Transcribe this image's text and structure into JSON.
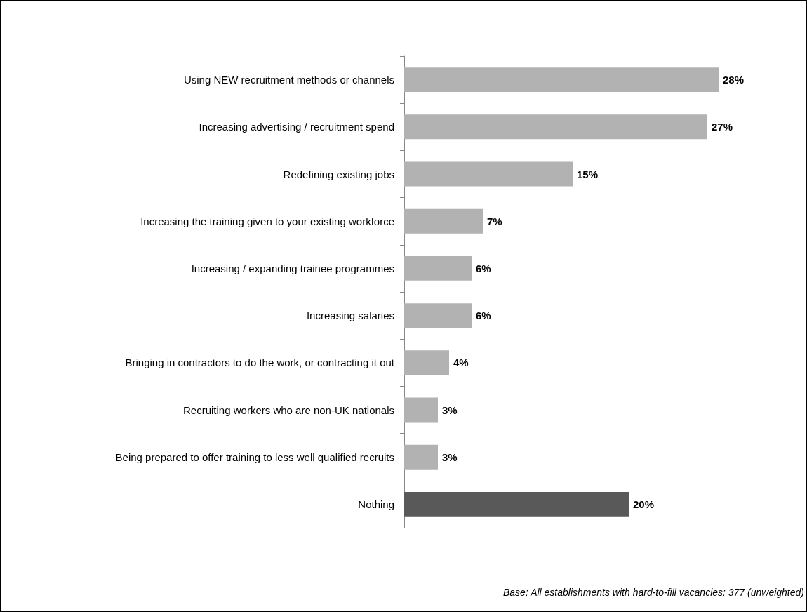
{
  "chart_data": {
    "type": "bar",
    "orientation": "horizontal",
    "categories": [
      "Using NEW recruitment methods or channels",
      "Increasing advertising / recruitment spend",
      "Redefining existing jobs",
      "Increasing the training given to your existing workforce",
      "Increasing / expanding trainee programmes",
      "Increasing salaries",
      "Bringing in contractors to do the work, or contracting it out",
      "Recruiting workers who are non-UK nationals",
      "Being prepared to offer training to less well qualified recruits",
      "Nothing"
    ],
    "values": [
      28,
      27,
      15,
      7,
      6,
      6,
      4,
      3,
      3,
      20
    ],
    "value_labels": [
      "28%",
      "27%",
      "15%",
      "7%",
      "6%",
      "6%",
      "4%",
      "3%",
      "3%",
      "20%"
    ],
    "colors": [
      "#b2b2b2",
      "#b2b2b2",
      "#b2b2b2",
      "#b2b2b2",
      "#b2b2b2",
      "#b2b2b2",
      "#b2b2b2",
      "#b2b2b2",
      "#b2b2b2",
      "#595959"
    ],
    "annotations": [
      "Base: All establishments with hard-to-fill vacancies: 377 (unweighted)"
    ]
  }
}
